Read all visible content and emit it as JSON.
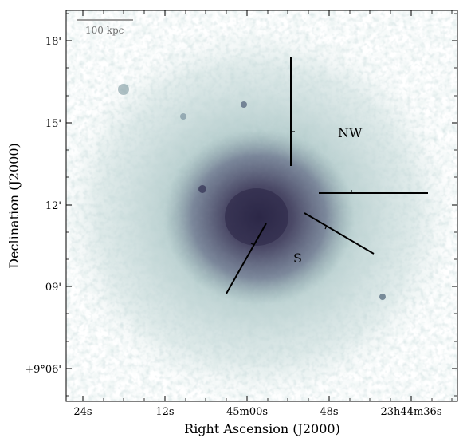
{
  "figure": {
    "x_axis_label": "Right Ascension (J2000)",
    "y_axis_label": "Declination (J2000)",
    "x_tick_labels": [
      "24s",
      "12s",
      "45m00s",
      "48s",
      "23h44m36s"
    ],
    "y_tick_labels": [
      "18'",
      "15'",
      "12'",
      "09'",
      "+9°06'"
    ],
    "scale_bar_label": "100 kpc",
    "regions": [
      {
        "label": "NW"
      },
      {
        "label": "S"
      }
    ],
    "colors": {
      "background": "#ffffff",
      "emission_faint": "#d8e7e6",
      "emission_mid": "#93b2b3",
      "emission_core": "#2c2547",
      "profile_lines": "#000000",
      "scale_bar": "#9a9a9a"
    }
  }
}
